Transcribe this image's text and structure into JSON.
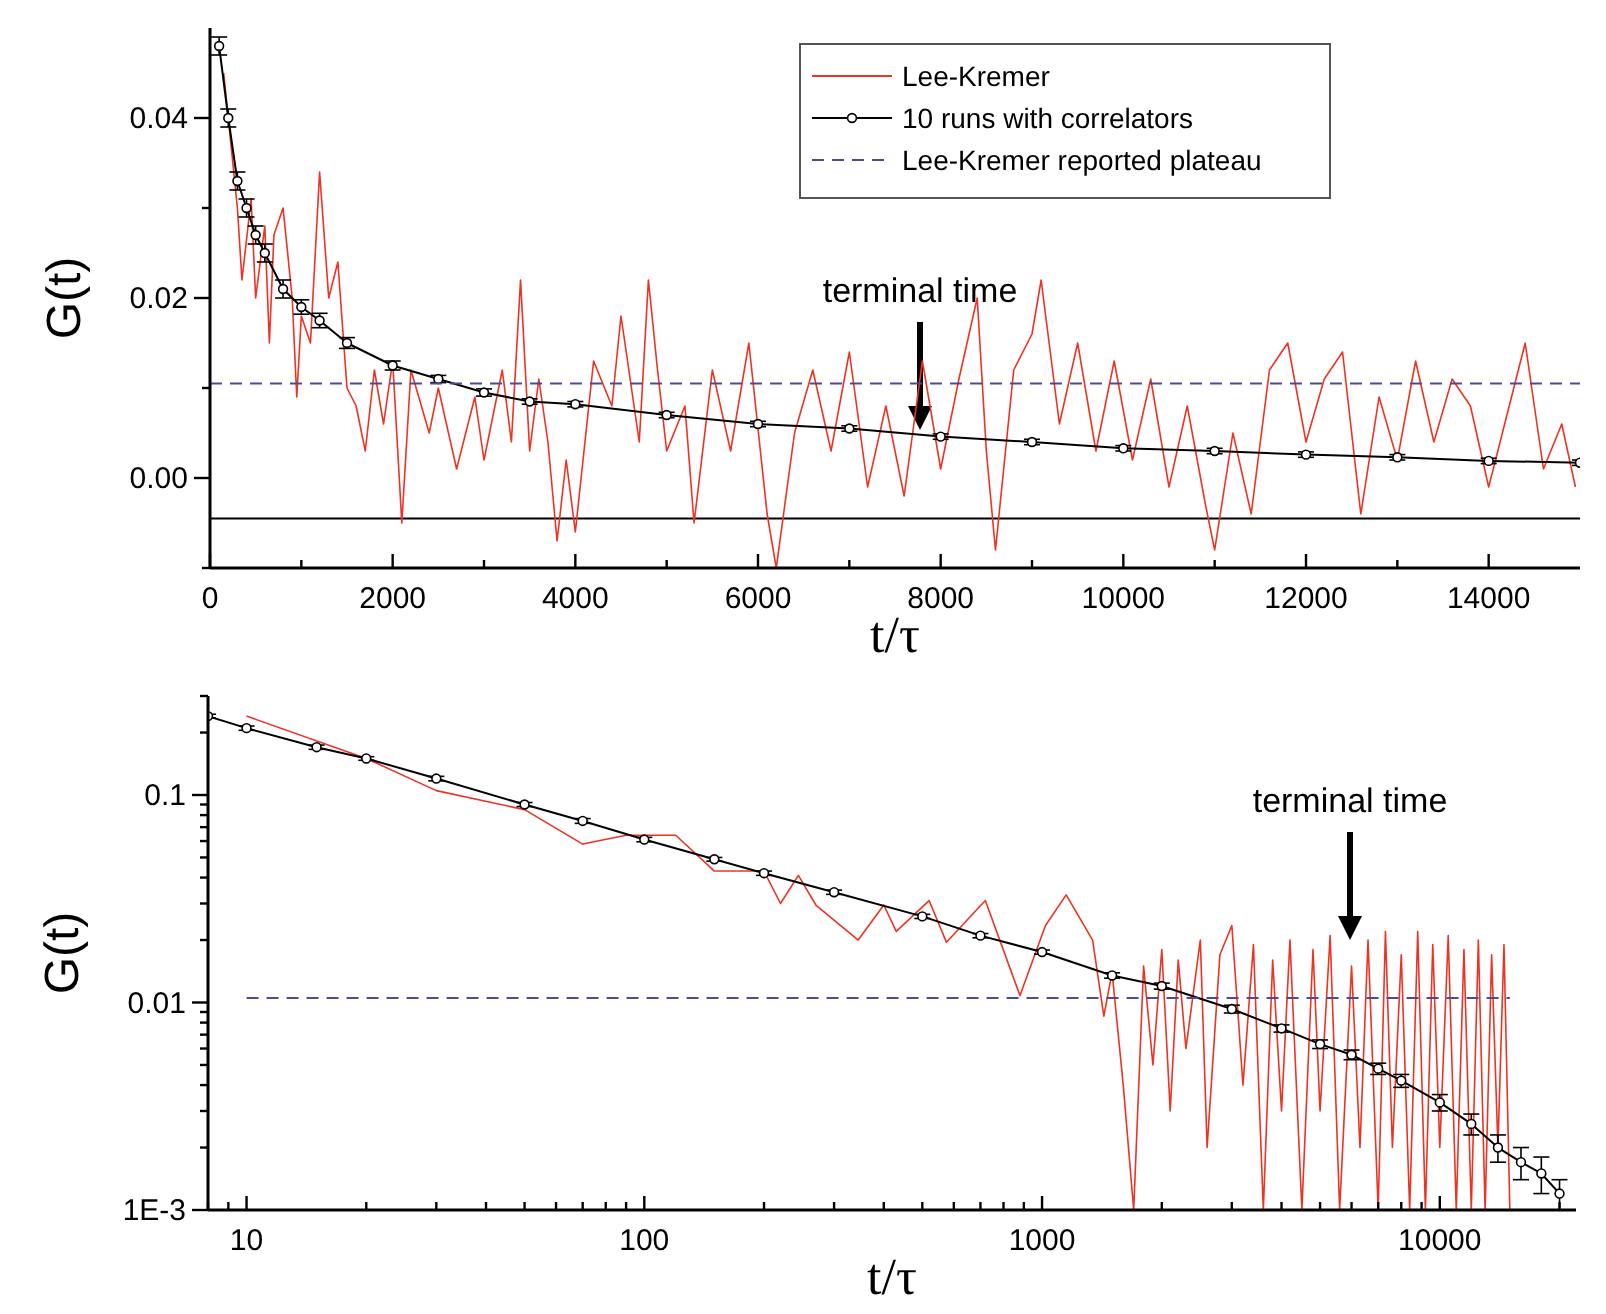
{
  "chart_data": [
    {
      "type": "line",
      "xlabel": "t/τ",
      "ylabel": "G(t)",
      "xlim": [
        0,
        15000
      ],
      "ylim": [
        -0.01,
        0.05
      ],
      "xticks": [
        0,
        {
          "value": 1000,
          "label": null
        },
        2000,
        {
          "value": 3000,
          "label": null
        },
        4000,
        {
          "value": 5000,
          "label": null
        },
        6000,
        {
          "value": 7000,
          "label": null
        },
        8000,
        {
          "value": 9000,
          "label": null
        },
        10000,
        {
          "value": 11000,
          "label": null
        },
        12000,
        {
          "value": 13000,
          "label": null
        },
        14000
      ],
      "yticks": [
        {
          "value": -0.01,
          "label": null
        },
        {
          "value": 0,
          "label": "0.00"
        },
        {
          "value": 0.01,
          "label": null
        },
        {
          "value": 0.02,
          "label": "0.02"
        },
        {
          "value": 0.03,
          "label": null
        },
        {
          "value": 0.04,
          "label": "0.04"
        }
      ],
      "legend": "top right",
      "ref_lines": [
        {
          "axis": "y",
          "value": -0.0045,
          "color": "#000000"
        }
      ],
      "annotations": [
        "terminal time"
      ],
      "series": [
        {
          "name": "Lee-Kremer",
          "color": "#ee3322",
          "marker": "none",
          "x": [
            150,
            300,
            350,
            450,
            500,
            600,
            650,
            700,
            800,
            900,
            950,
            1000,
            1100,
            1200,
            1300,
            1400,
            1500,
            1600,
            1700,
            1800,
            1900,
            2000,
            2100,
            2200,
            2400,
            2500,
            2700,
            2900,
            3000,
            3200,
            3300,
            3400,
            3500,
            3600,
            3700,
            3800,
            3900,
            4000,
            4200,
            4400,
            4500,
            4700,
            4800,
            4900,
            5000,
            5200,
            5300,
            5500,
            5700,
            5900,
            6100,
            6200,
            6400,
            6600,
            6800,
            7000,
            7200,
            7400,
            7600,
            7800,
            8000,
            8200,
            8400,
            8500,
            8600,
            8800,
            9000,
            9100,
            9300,
            9500,
            9700,
            9900,
            10100,
            10300,
            10500,
            10700,
            10900,
            11000,
            11200,
            11400,
            11600,
            11800,
            12000,
            12200,
            12400,
            12600,
            12800,
            13000,
            13200,
            13400,
            13600,
            13800,
            14000,
            14200,
            14400,
            14600,
            14800,
            14950
          ],
          "values": [
            0.045,
            0.03,
            0.022,
            0.031,
            0.02,
            0.028,
            0.015,
            0.027,
            0.03,
            0.02,
            0.009,
            0.018,
            0.015,
            0.034,
            0.02,
            0.024,
            0.01,
            0.008,
            0.003,
            0.012,
            0.006,
            0.013,
            -0.005,
            0.012,
            0.005,
            0.01,
            0.001,
            0.009,
            0.002,
            0.012,
            0.004,
            0.022,
            0.003,
            0.011,
            0.004,
            -0.007,
            0.002,
            -0.006,
            0.013,
            0.008,
            0.018,
            0.004,
            0.022,
            0.012,
            0.003,
            0.008,
            -0.005,
            0.012,
            0.003,
            0.015,
            -0.004,
            -0.01,
            0.005,
            0.012,
            0.003,
            0.014,
            -0.001,
            0.008,
            -0.002,
            0.013,
            0.001,
            0.011,
            0.02,
            0.003,
            -0.008,
            0.012,
            0.016,
            0.022,
            0.006,
            0.015,
            0.003,
            0.013,
            0.002,
            0.011,
            -0.001,
            0.008,
            -0.003,
            -0.008,
            0.005,
            -0.004,
            0.012,
            0.015,
            0.004,
            0.011,
            0.014,
            -0.004,
            0.009,
            0.002,
            0.013,
            0.004,
            0.011,
            0.008,
            -0.001,
            0.007,
            0.015,
            0.001,
            0.006,
            -0.001
          ]
        },
        {
          "name": "10 runs with correlators",
          "color": "#000000",
          "marker": "circle",
          "x": [
            100,
            200,
            300,
            400,
            500,
            600,
            800,
            1000,
            1200,
            1500,
            2000,
            2500,
            3000,
            3500,
            4000,
            5000,
            6000,
            7000,
            8000,
            9000,
            10000,
            11000,
            12000,
            13000,
            14000,
            15000
          ],
          "values": [
            0.048,
            0.04,
            0.033,
            0.03,
            0.027,
            0.025,
            0.021,
            0.019,
            0.0175,
            0.015,
            0.0125,
            0.011,
            0.0095,
            0.0085,
            0.0082,
            0.007,
            0.006,
            0.0055,
            0.0046,
            0.004,
            0.0033,
            0.003,
            0.0026,
            0.0023,
            0.0019,
            0.0017
          ],
          "errors": [
            0.001,
            0.001,
            0.001,
            0.001,
            0.001,
            0.001,
            0.001,
            0.0008,
            0.0008,
            0.0006,
            0.0005,
            0.0004,
            0.0004,
            0.0003,
            0.0003,
            0.0003,
            0.0003,
            0.0003,
            0.0003,
            0.0003,
            0.0003,
            0.0003,
            0.0003,
            0.0003,
            0.0003,
            0.0003
          ]
        },
        {
          "name": "Lee-Kremer reported plateau",
          "color": "#4a4a9a",
          "marker": "none",
          "line_style": "dashed",
          "x": [
            0,
            15000
          ],
          "values": [
            0.0105,
            0.0105
          ]
        }
      ]
    },
    {
      "type": "line",
      "xlabel": "t/τ",
      "ylabel": "G(t)",
      "log": "xy",
      "xlim": [
        8,
        22000
      ],
      "ylim": [
        0.001,
        0.3
      ],
      "xticks": [
        {
          "value": 8,
          "label": null
        },
        {
          "value": 9,
          "label": null
        },
        10,
        {
          "value": 20,
          "label": null
        },
        {
          "value": 30,
          "label": null
        },
        {
          "value": 40,
          "label": null
        },
        {
          "value": 50,
          "label": null
        },
        {
          "value": 60,
          "label": null
        },
        {
          "value": 70,
          "label": null
        },
        {
          "value": 80,
          "label": null
        },
        {
          "value": 90,
          "label": null
        },
        100,
        {
          "value": 200,
          "label": null
        },
        {
          "value": 300,
          "label": null
        },
        {
          "value": 400,
          "label": null
        },
        {
          "value": 500,
          "label": null
        },
        {
          "value": 600,
          "label": null
        },
        {
          "value": 700,
          "label": null
        },
        {
          "value": 800,
          "label": null
        },
        {
          "value": 900,
          "label": null
        },
        1000,
        {
          "value": 2000,
          "label": null
        },
        {
          "value": 3000,
          "label": null
        },
        {
          "value": 4000,
          "label": null
        },
        {
          "value": 5000,
          "label": null
        },
        {
          "value": 6000,
          "label": null
        },
        {
          "value": 7000,
          "label": null
        },
        {
          "value": 8000,
          "label": null
        },
        {
          "value": 9000,
          "label": null
        },
        10000,
        {
          "value": 20000,
          "label": null
        }
      ],
      "yticks": [
        {
          "value": 0.001,
          "label": "1E-3"
        },
        {
          "value": 0.002,
          "label": null
        },
        {
          "value": 0.003,
          "label": null
        },
        {
          "value": 0.004,
          "label": null
        },
        {
          "value": 0.005,
          "label": null
        },
        {
          "value": 0.006,
          "label": null
        },
        {
          "value": 0.007,
          "label": null
        },
        {
          "value": 0.008,
          "label": null
        },
        {
          "value": 0.009,
          "label": null
        },
        0.01,
        {
          "value": 0.02,
          "label": null
        },
        {
          "value": 0.03,
          "label": null
        },
        {
          "value": 0.04,
          "label": null
        },
        {
          "value": 0.05,
          "label": null
        },
        {
          "value": 0.06,
          "label": null
        },
        {
          "value": 0.07,
          "label": null
        },
        {
          "value": 0.08,
          "label": null
        },
        {
          "value": 0.09,
          "label": null
        },
        0.1,
        {
          "value": 0.2,
          "label": null
        },
        {
          "value": 0.3,
          "label": null
        }
      ],
      "annotations": [
        "terminal time"
      ],
      "series": [
        {
          "color": "#ee3322",
          "marker": "none",
          "x": [
            10,
            20,
            30,
            50,
            70,
            90,
            120,
            150,
            200,
            220,
            244,
            270,
            345,
            400,
            430,
            520,
            575,
            720,
            880,
            1020,
            1150,
            1340,
            1430,
            1500,
            1600,
            1700,
            1800,
            1900,
            2000,
            2100,
            2200,
            2300,
            2500,
            2600,
            2800,
            3000,
            3200,
            3400,
            3600,
            3800,
            4000,
            4200,
            4500,
            4800,
            5000,
            5300,
            5600,
            6000,
            6300,
            6600,
            7000,
            7300,
            7600,
            8000,
            8400,
            8800,
            9200,
            9600,
            10000,
            10500,
            11000,
            11500,
            12000,
            12500,
            13000,
            13500,
            14000,
            14500,
            15000
          ],
          "values": [
            0.24,
            0.15,
            0.105,
            0.085,
            0.058,
            0.064,
            0.064,
            0.043,
            0.043,
            0.03,
            0.041,
            0.0295,
            0.02,
            0.0295,
            0.022,
            0.031,
            0.0195,
            0.031,
            0.0108,
            0.0235,
            0.033,
            0.02,
            0.0086,
            0.014,
            0.004,
            0.001,
            0.015,
            0.005,
            0.018,
            0.003,
            0.016,
            0.006,
            0.02,
            0.002,
            0.017,
            0.0235,
            0.004,
            0.019,
            0.001,
            0.016,
            0.003,
            0.02,
            0.001,
            0.018,
            0.003,
            0.021,
            0.001,
            0.015,
            0.002,
            0.02,
            0.001,
            0.022,
            0.002,
            0.017,
            0.001,
            0.022,
            0.001,
            0.019,
            0.002,
            0.021,
            0.001,
            0.018,
            0.001,
            0.02,
            0.001,
            0.017,
            0.002,
            0.019,
            0.001
          ]
        },
        {
          "color": "#000000",
          "marker": "circle",
          "x": [
            8,
            10,
            15,
            20,
            30,
            50,
            70,
            100,
            150,
            200,
            300,
            500,
            700,
            1000,
            1500,
            2000,
            3000,
            4000,
            5000,
            6000,
            7000,
            8000,
            10000,
            12000,
            14000,
            16000,
            18000,
            20000
          ],
          "values": [
            0.24,
            0.21,
            0.17,
            0.15,
            0.12,
            0.09,
            0.075,
            0.061,
            0.049,
            0.042,
            0.034,
            0.026,
            0.021,
            0.0175,
            0.0135,
            0.012,
            0.0093,
            0.0075,
            0.0063,
            0.0056,
            0.0048,
            0.0042,
            0.0033,
            0.0026,
            0.002,
            0.0017,
            0.0015,
            0.0012
          ],
          "errors": [
            0.005,
            0.005,
            0.004,
            0.003,
            0.003,
            0.002,
            0.002,
            0.0015,
            0.001,
            0.001,
            0.0008,
            0.0006,
            0.0005,
            0.0004,
            0.0004,
            0.0004,
            0.0004,
            0.0003,
            0.0003,
            0.0003,
            0.0003,
            0.0003,
            0.0003,
            0.0003,
            0.0003,
            0.0003,
            0.0003,
            0.0002
          ]
        },
        {
          "color": "#4a4a9a",
          "marker": "none",
          "line_style": "dashed",
          "x": [
            10,
            15000
          ],
          "values": [
            0.0105,
            0.0105
          ]
        }
      ]
    }
  ]
}
